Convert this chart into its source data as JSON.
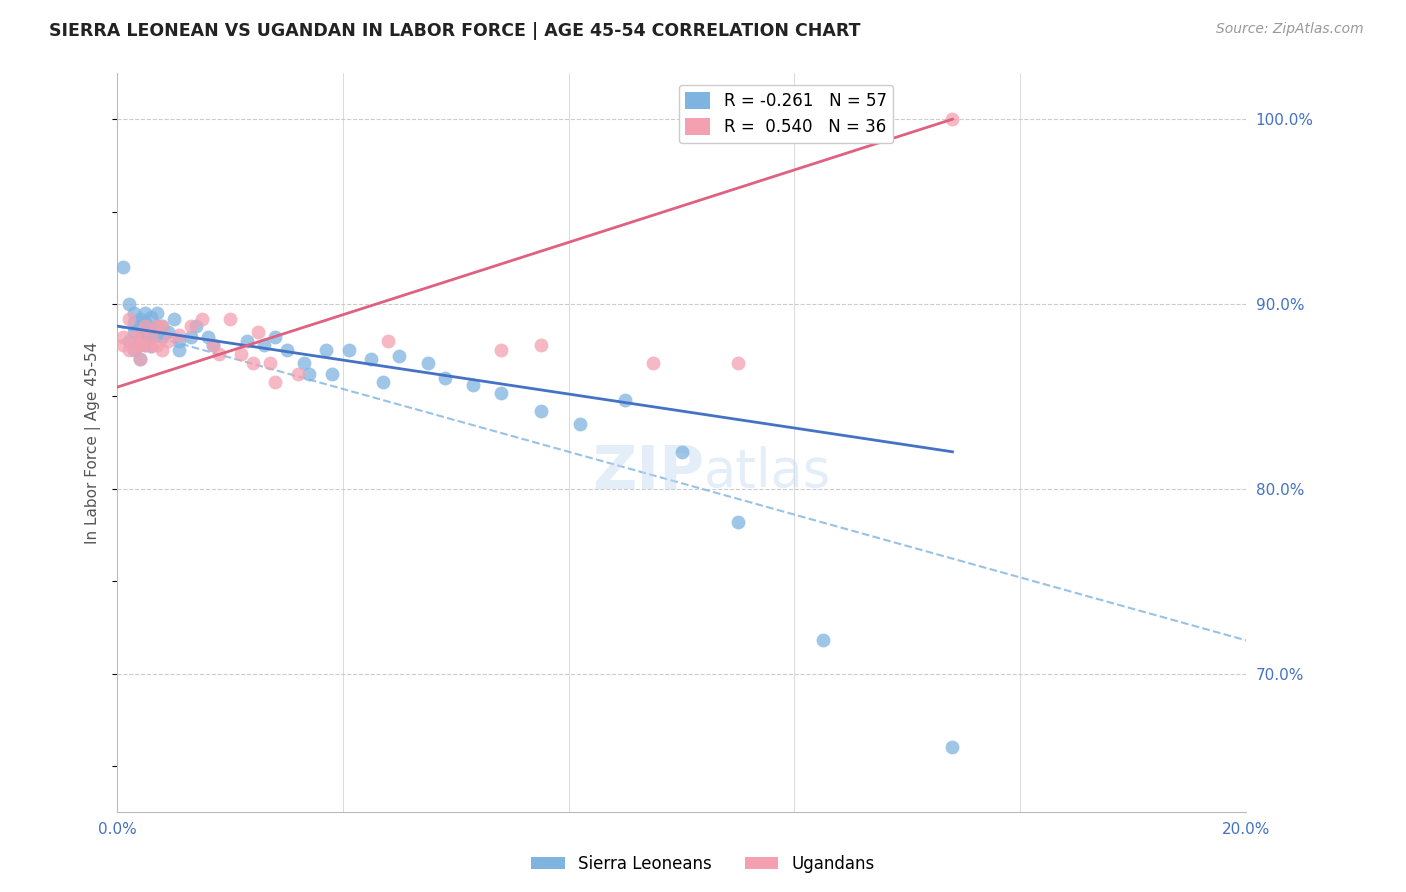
{
  "title": "SIERRA LEONEAN VS UGANDAN IN LABOR FORCE | AGE 45-54 CORRELATION CHART",
  "source": "Source: ZipAtlas.com",
  "ylabel": "In Labor Force | Age 45-54",
  "x_min": 0.0,
  "x_max": 0.2,
  "y_min": 0.625,
  "y_max": 1.025,
  "x_ticks": [
    0.0,
    0.04,
    0.08,
    0.12,
    0.16,
    0.2
  ],
  "x_tick_labels": [
    "0.0%",
    "",
    "",
    "",
    "",
    "20.0%"
  ],
  "y_tick_labels_right": [
    "70.0%",
    "80.0%",
    "90.0%",
    "100.0%"
  ],
  "y_tick_vals_right": [
    0.7,
    0.8,
    0.9,
    1.0
  ],
  "sierra_color": "#7fb3e0",
  "ugandan_color": "#f4a0b0",
  "sierra_line_color": "#4472c4",
  "ugandan_line_color": "#e06080",
  "grid_color": "#cccccc",
  "background_color": "#ffffff",
  "sierra_x": [
    0.001,
    0.002,
    0.002,
    0.003,
    0.003,
    0.003,
    0.003,
    0.004,
    0.004,
    0.004,
    0.004,
    0.004,
    0.005,
    0.005,
    0.005,
    0.005,
    0.005,
    0.006,
    0.006,
    0.006,
    0.006,
    0.007,
    0.007,
    0.007,
    0.008,
    0.008,
    0.009,
    0.01,
    0.011,
    0.011,
    0.013,
    0.014,
    0.016,
    0.017,
    0.023,
    0.026,
    0.028,
    0.03,
    0.033,
    0.034,
    0.037,
    0.038,
    0.041,
    0.045,
    0.047,
    0.05,
    0.055,
    0.058,
    0.063,
    0.068,
    0.075,
    0.082,
    0.09,
    0.1,
    0.11,
    0.125,
    0.148
  ],
  "sierra_y": [
    0.92,
    0.9,
    0.88,
    0.89,
    0.895,
    0.885,
    0.875,
    0.892,
    0.888,
    0.882,
    0.878,
    0.87,
    0.895,
    0.89,
    0.885,
    0.882,
    0.878,
    0.893,
    0.887,
    0.882,
    0.877,
    0.895,
    0.888,
    0.883,
    0.888,
    0.882,
    0.885,
    0.892,
    0.88,
    0.875,
    0.882,
    0.888,
    0.882,
    0.878,
    0.88,
    0.878,
    0.882,
    0.875,
    0.868,
    0.862,
    0.875,
    0.862,
    0.875,
    0.87,
    0.858,
    0.872,
    0.868,
    0.86,
    0.856,
    0.852,
    0.842,
    0.835,
    0.848,
    0.82,
    0.782,
    0.718,
    0.66
  ],
  "ugandan_x": [
    0.001,
    0.001,
    0.002,
    0.002,
    0.003,
    0.003,
    0.004,
    0.004,
    0.004,
    0.005,
    0.005,
    0.006,
    0.006,
    0.007,
    0.007,
    0.008,
    0.008,
    0.009,
    0.011,
    0.013,
    0.015,
    0.017,
    0.018,
    0.02,
    0.022,
    0.024,
    0.025,
    0.027,
    0.028,
    0.032,
    0.048,
    0.068,
    0.075,
    0.095,
    0.11,
    0.148
  ],
  "ugandan_y": [
    0.878,
    0.882,
    0.892,
    0.875,
    0.882,
    0.876,
    0.882,
    0.878,
    0.87,
    0.888,
    0.878,
    0.883,
    0.877,
    0.888,
    0.878,
    0.888,
    0.875,
    0.88,
    0.883,
    0.888,
    0.892,
    0.878,
    0.873,
    0.892,
    0.873,
    0.868,
    0.885,
    0.868,
    0.858,
    0.862,
    0.88,
    0.875,
    0.878,
    0.868,
    0.868,
    1.0
  ],
  "sierra_line_x": [
    0.0,
    0.148
  ],
  "sierra_line_y": [
    0.888,
    0.82
  ],
  "ugandan_line_x": [
    0.0,
    0.148
  ],
  "ugandan_line_y": [
    0.855,
    1.0
  ],
  "dashed_line_x": [
    0.0,
    0.2
  ],
  "dashed_line_y": [
    0.888,
    0.718
  ]
}
